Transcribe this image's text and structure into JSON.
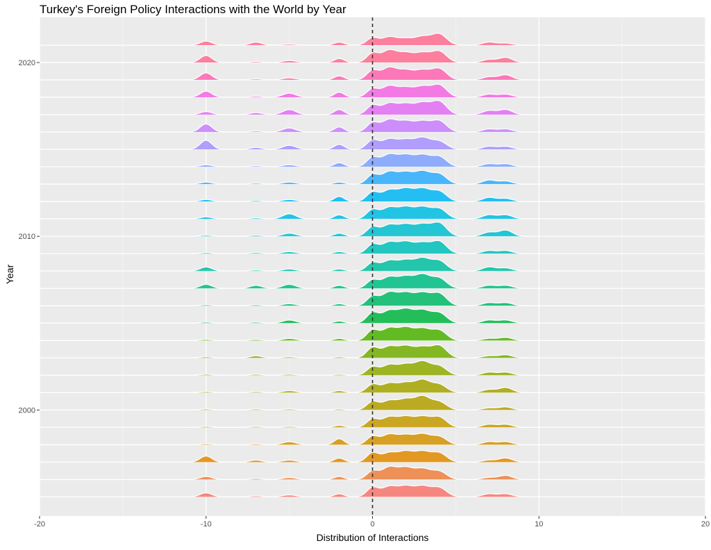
{
  "chart_data": {
    "type": "ridgeline",
    "title": "Turkey's Foreign Policy Interactions with the World by Year",
    "xlabel": "Distribution of Interactions",
    "ylabel": "Year",
    "xlim": [
      -20,
      20
    ],
    "ylim": [
      1993.9,
      2022.6
    ],
    "x_ticks": [
      -20,
      -10,
      0,
      10,
      20
    ],
    "x_tick_labels": [
      "-20",
      "-10",
      "0",
      "10",
      "20"
    ],
    "y_ticks": [
      2000,
      2010,
      2020
    ],
    "y_tick_labels": [
      "2000",
      "2010",
      "2020"
    ],
    "reference_line": {
      "x": 0,
      "style": "dashed"
    },
    "grid": true,
    "legend": "none",
    "peak_positions": [
      -10,
      -7,
      -5,
      -2,
      0,
      1,
      2,
      3,
      4,
      7,
      8
    ],
    "series": [
      {
        "year": 1995,
        "peak_heights": [
          0.4,
          0.1,
          0.2,
          0.3,
          0.9,
          1.0,
          1.0,
          1.0,
          0.9,
          0.3,
          0.3
        ],
        "color": "#F8766D"
      },
      {
        "year": 1996,
        "peak_heights": [
          0.3,
          0.1,
          0.2,
          0.3,
          0.8,
          1.2,
          1.1,
          1.0,
          0.8,
          0.2,
          0.4
        ],
        "color": "#ED813E"
      },
      {
        "year": 1997,
        "peak_heights": [
          0.6,
          0.2,
          0.2,
          0.4,
          0.9,
          0.9,
          1.0,
          1.0,
          0.9,
          0.2,
          0.4
        ],
        "color": "#E18A00"
      },
      {
        "year": 1998,
        "peak_heights": [
          0.1,
          0.1,
          0.3,
          0.6,
          0.8,
          1.0,
          0.9,
          1.0,
          0.8,
          0.3,
          0.3
        ],
        "color": "#D39200"
      },
      {
        "year": 1999,
        "peak_heights": [
          0.1,
          0.1,
          0.1,
          0.2,
          0.8,
          1.0,
          1.0,
          1.0,
          1.0,
          0.3,
          0.3
        ],
        "color": "#C49A00"
      },
      {
        "year": 2000,
        "peak_heights": [
          0.1,
          0.1,
          0.1,
          0.1,
          0.8,
          0.9,
          1.0,
          1.3,
          0.8,
          0.2,
          0.3
        ],
        "color": "#B3A000"
      },
      {
        "year": 2001,
        "peak_heights": [
          0.1,
          0.1,
          0.2,
          0.2,
          0.8,
          0.9,
          0.9,
          1.2,
          0.8,
          0.3,
          0.5
        ],
        "color": "#A3A500"
      },
      {
        "year": 2002,
        "peak_heights": [
          0.1,
          0.1,
          0.1,
          0.1,
          0.8,
          1.0,
          1.0,
          1.3,
          0.9,
          0.3,
          0.3
        ],
        "color": "#8FAA00"
      },
      {
        "year": 2003,
        "peak_heights": [
          0.1,
          0.2,
          0.1,
          0.1,
          1.0,
          1.1,
          1.1,
          1.0,
          1.2,
          0.2,
          0.3
        ],
        "color": "#72AE00"
      },
      {
        "year": 2004,
        "peak_heights": [
          0.1,
          0.1,
          0.2,
          0.2,
          1.0,
          1.2,
          1.2,
          1.1,
          1.0,
          0.2,
          0.3
        ],
        "color": "#4BB300"
      },
      {
        "year": 2005,
        "peak_heights": [
          0.1,
          0.1,
          0.3,
          0.2,
          1.0,
          1.2,
          1.3,
          1.2,
          1.0,
          0.3,
          0.3
        ],
        "color": "#00B63F"
      },
      {
        "year": 2006,
        "peak_heights": [
          0.1,
          0.1,
          0.2,
          0.2,
          0.9,
          1.3,
          1.2,
          1.2,
          1.2,
          0.3,
          0.3
        ],
        "color": "#00BA66"
      },
      {
        "year": 2007,
        "peak_heights": [
          0.4,
          0.3,
          0.4,
          0.3,
          0.8,
          1.1,
          1.1,
          1.3,
          1.0,
          0.3,
          0.3
        ],
        "color": "#00BD84"
      },
      {
        "year": 2008,
        "peak_heights": [
          0.4,
          0.1,
          0.2,
          0.2,
          0.8,
          1.0,
          1.0,
          1.2,
          1.0,
          0.4,
          0.3
        ],
        "color": "#00BFA0"
      },
      {
        "year": 2009,
        "peak_heights": [
          0.1,
          0.1,
          0.2,
          0.2,
          0.9,
          1.1,
          1.1,
          1.0,
          1.2,
          0.3,
          0.3
        ],
        "color": "#00C0B8"
      },
      {
        "year": 2010,
        "peak_heights": [
          0.1,
          0.1,
          0.3,
          0.3,
          0.9,
          1.1,
          1.1,
          1.1,
          1.3,
          0.4,
          0.6
        ],
        "color": "#00BFCE"
      },
      {
        "year": 2011,
        "peak_heights": [
          0.2,
          0.1,
          0.5,
          0.4,
          0.9,
          1.1,
          1.1,
          1.1,
          1.0,
          0.4,
          0.4
        ],
        "color": "#00BCE2"
      },
      {
        "year": 2012,
        "peak_heights": [
          0.2,
          0.1,
          0.2,
          0.5,
          0.9,
          1.1,
          1.2,
          1.2,
          1.0,
          0.4,
          0.3
        ],
        "color": "#00B7F3"
      },
      {
        "year": 2013,
        "peak_heights": [
          0.2,
          0.1,
          0.2,
          0.2,
          0.9,
          1.2,
          1.1,
          1.2,
          1.0,
          0.4,
          0.3
        ],
        "color": "#2DADFF"
      },
      {
        "year": 2014,
        "peak_heights": [
          0.2,
          0.1,
          0.2,
          0.4,
          0.9,
          1.2,
          1.1,
          1.1,
          1.0,
          0.3,
          0.3
        ],
        "color": "#7FA1FF"
      },
      {
        "year": 2015,
        "peak_heights": [
          0.9,
          0.2,
          0.4,
          0.5,
          0.9,
          1.0,
          0.9,
          1.1,
          0.8,
          0.3,
          0.3
        ],
        "color": "#A68FFF"
      },
      {
        "year": 2016,
        "peak_heights": [
          0.8,
          0.1,
          0.4,
          0.5,
          0.9,
          1.2,
          1.0,
          1.0,
          1.1,
          0.3,
          0.3
        ],
        "color": "#C87EFF"
      },
      {
        "year": 2017,
        "peak_heights": [
          0.3,
          0.2,
          0.5,
          0.5,
          0.9,
          1.1,
          1.0,
          1.1,
          1.3,
          0.4,
          0.5
        ],
        "color": "#E26FF4"
      },
      {
        "year": 2018,
        "peak_heights": [
          0.6,
          0.1,
          0.4,
          0.5,
          0.8,
          1.1,
          0.9,
          1.0,
          1.2,
          0.3,
          0.3
        ],
        "color": "#F565E3"
      },
      {
        "year": 2019,
        "peak_heights": [
          0.7,
          0.1,
          0.2,
          0.4,
          0.9,
          1.2,
          0.9,
          0.9,
          1.1,
          0.3,
          0.5
        ],
        "color": "#FF64B0"
      },
      {
        "year": 2020,
        "peak_heights": [
          0.7,
          0.1,
          0.2,
          0.4,
          0.9,
          1.2,
          0.9,
          0.9,
          1.1,
          0.3,
          0.5
        ],
        "color": "#FF6C91"
      },
      {
        "year": 2021,
        "peak_heights": [
          0.4,
          0.3,
          0.1,
          0.3,
          0.7,
          0.8,
          0.6,
          0.8,
          1.1,
          0.3,
          0.2
        ],
        "color": "#FF6C91"
      }
    ]
  }
}
